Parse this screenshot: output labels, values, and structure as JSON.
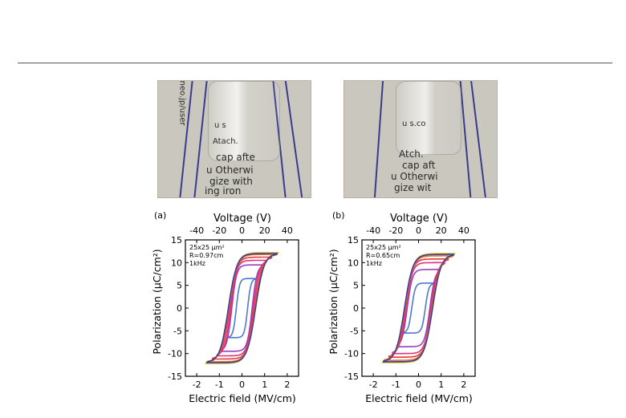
{
  "photos": [
    {
      "lines": [
        "cap afte",
        "u Otherwi",
        "gize with",
        "ing iron"
      ],
      "top_text": "neo.jp/user",
      "mid_text": "u s",
      "mid_text2": "Atach."
    },
    {
      "lines": [
        "cap aft",
        "u Otherwi",
        "gize wit"
      ],
      "top_text": "",
      "mid_text": "u s.co",
      "mid_text2": "Atch."
    }
  ],
  "panels": [
    {
      "label": "(a)",
      "top_axis_title": "Voltage (V)",
      "top_ticks": [
        "-40",
        "-20",
        "0",
        "20",
        "40"
      ],
      "bottom_axis_title": "Electric field (MV/cm)",
      "bottom_ticks": [
        "-2",
        "-1",
        "0",
        "1",
        "2"
      ],
      "y_axis_title": "Polarization (μC/cm²)",
      "y_ticks": [
        "15",
        "10",
        "5",
        "0",
        "-5",
        "-10",
        "-15"
      ],
      "annotation": [
        "25x25 μm²",
        "R=0.97cm",
        "1kHz"
      ]
    },
    {
      "label": "(b)",
      "top_axis_title": "Voltage (V)",
      "top_ticks": [
        "-40",
        "-20",
        "0",
        "20",
        "40"
      ],
      "bottom_axis_title": "Electric field (MV/cm)",
      "bottom_ticks": [
        "-2",
        "-1",
        "0",
        "1",
        "2"
      ],
      "y_axis_title": "Polarization (μC/cm²)",
      "y_ticks": [
        "15",
        "10",
        "5",
        "0",
        "-5",
        "-10",
        "-15"
      ],
      "annotation": [
        "25x25 μm²",
        "R=0.65cm",
        "1kHz"
      ]
    }
  ],
  "chart_data": [
    {
      "type": "line",
      "title": "",
      "xlabel": "Electric field (MV/cm)",
      "x2label": "Voltage (V)",
      "ylabel": "Polarization (μC/cm²)",
      "xlim": [
        -2.5,
        2.5
      ],
      "ylim": [
        -15,
        15
      ],
      "x2lim": [
        -50,
        50
      ],
      "grid": false,
      "loops": [
        {
          "color": "#4a7bd0",
          "emax": 0.6,
          "pmax": 6.5,
          "ec": 0.25
        },
        {
          "color": "#9b3fbf",
          "emax": 0.9,
          "pmax": 9.5,
          "ec": 0.45
        },
        {
          "color": "#e0307a",
          "emax": 1.1,
          "pmax": 10.5,
          "ec": 0.5
        },
        {
          "color": "#e23a3a",
          "emax": 1.3,
          "pmax": 11.2,
          "ec": 0.55
        },
        {
          "color": "#e8722a",
          "emax": 1.5,
          "pmax": 11.8,
          "ec": 0.58
        },
        {
          "color": "#d8c820",
          "emax": 1.6,
          "pmax": 12.2,
          "ec": 0.6
        },
        {
          "color": "#3a3aa8",
          "emax": 1.55,
          "pmax": 12.0,
          "ec": 0.6
        }
      ]
    },
    {
      "type": "line",
      "title": "",
      "xlabel": "Electric field (MV/cm)",
      "x2label": "Voltage (V)",
      "ylabel": "Polarization (μC/cm²)",
      "xlim": [
        -2.5,
        2.5
      ],
      "ylim": [
        -15,
        15
      ],
      "x2lim": [
        -50,
        50
      ],
      "grid": false,
      "loops": [
        {
          "color": "#4a7bd0",
          "emax": 0.65,
          "pmax": 5.5,
          "ec": 0.3
        },
        {
          "color": "#9b3fbf",
          "emax": 0.95,
          "pmax": 8.5,
          "ec": 0.5
        },
        {
          "color": "#e0307a",
          "emax": 1.15,
          "pmax": 10.0,
          "ec": 0.55
        },
        {
          "color": "#e23a3a",
          "emax": 1.3,
          "pmax": 10.8,
          "ec": 0.58
        },
        {
          "color": "#e8722a",
          "emax": 1.5,
          "pmax": 11.5,
          "ec": 0.6
        },
        {
          "color": "#d8c820",
          "emax": 1.6,
          "pmax": 12.0,
          "ec": 0.62
        },
        {
          "color": "#3a3aa8",
          "emax": 1.55,
          "pmax": 11.8,
          "ec": 0.62
        }
      ]
    }
  ]
}
